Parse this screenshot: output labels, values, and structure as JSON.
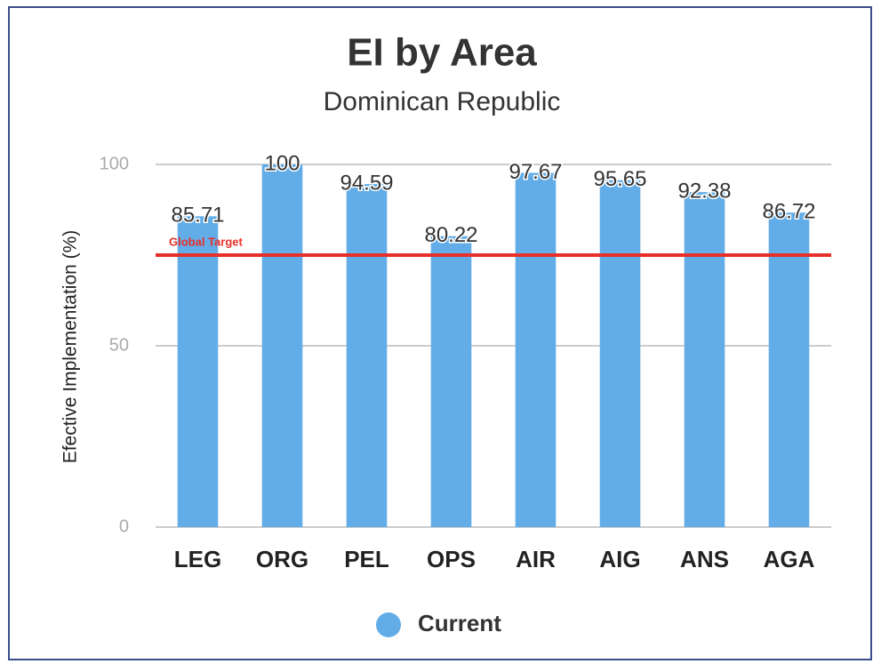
{
  "chart_data": {
    "type": "bar",
    "title": "EI by Area",
    "subtitle": "Dominican Republic",
    "y_label": "Efective Implementation (%)",
    "categories": [
      "LEG",
      "ORG",
      "PEL",
      "OPS",
      "AIR",
      "AIG",
      "ANS",
      "AGA"
    ],
    "series": [
      {
        "name": "Current",
        "color": "#62ade8",
        "values": [
          85.71,
          100,
          94.59,
          80.22,
          97.67,
          95.65,
          92.38,
          86.72
        ]
      }
    ],
    "ylim": [
      0,
      100
    ],
    "yticks": [
      0,
      50,
      100
    ],
    "grid": true,
    "target": {
      "label": "Global Target",
      "value": 75,
      "color": "#e8302a"
    }
  }
}
